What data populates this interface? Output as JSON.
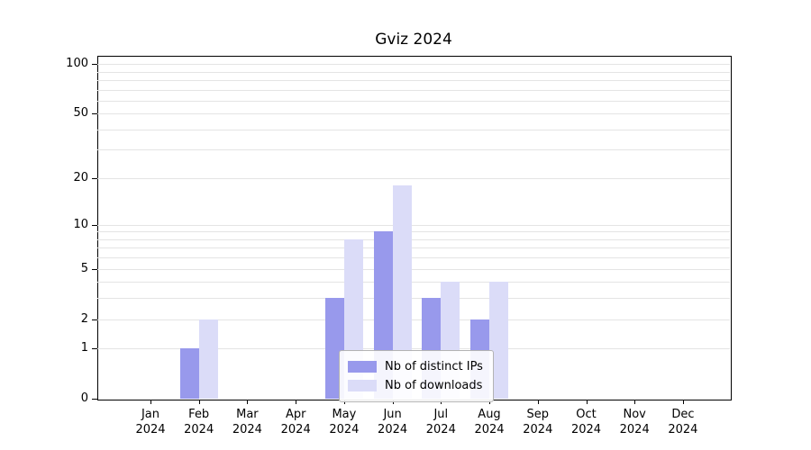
{
  "chart_data": {
    "type": "bar",
    "title": "Gviz 2024",
    "yscale": "log1p",
    "ylim": [
      0,
      112
    ],
    "grid": "horizontal-minor-log",
    "legend_position": "lower-center-inside",
    "categories": [
      "Jan 2024",
      "Feb 2024",
      "Mar 2024",
      "Apr 2024",
      "May 2024",
      "Jun 2024",
      "Jul 2024",
      "Aug 2024",
      "Sep 2024",
      "Oct 2024",
      "Nov 2024",
      "Dec 2024"
    ],
    "yticks": [
      0,
      1,
      2,
      5,
      10,
      20,
      50,
      100
    ],
    "minor_gridlines": [
      1,
      2,
      3,
      4,
      5,
      6,
      7,
      8,
      9,
      10,
      20,
      30,
      40,
      50,
      60,
      70,
      80,
      90,
      100
    ],
    "series": [
      {
        "name": "Nb of distinct IPs",
        "color": "#9899ec",
        "values": [
          0,
          1,
          0,
          0,
          3,
          9,
          3,
          2,
          0,
          0,
          0,
          0
        ]
      },
      {
        "name": "Nb of downloads",
        "color": "#dbdcf8",
        "values": [
          0,
          2,
          0,
          0,
          8,
          18,
          4,
          4,
          0,
          0,
          0,
          0
        ]
      }
    ]
  }
}
